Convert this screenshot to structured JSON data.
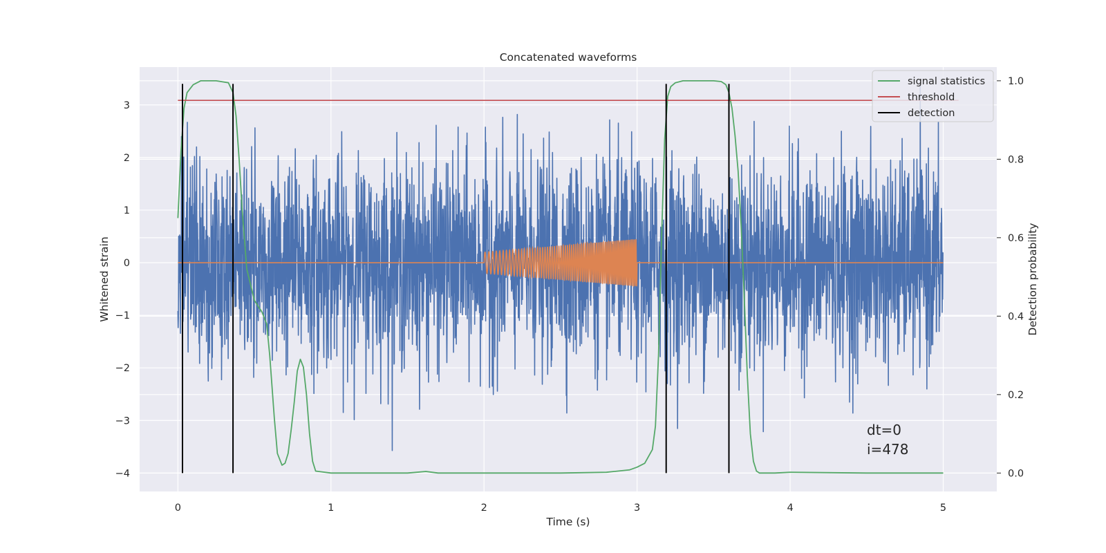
{
  "chart_data": {
    "type": "line",
    "title": "Concatenated waveforms",
    "xlabel": "Time (s)",
    "ylabel": "Whitened strain",
    "y2label": "Detection probability",
    "xlim": [
      -0.25,
      5.35
    ],
    "ylim": [
      -4.35,
      3.72
    ],
    "y2lim": [
      -0.047,
      1.035
    ],
    "xticks": [
      0,
      1,
      2,
      3,
      4,
      5
    ],
    "xtick_labels": [
      "0",
      "1",
      "2",
      "3",
      "4",
      "5"
    ],
    "yticks": [
      3,
      2,
      1,
      0,
      -1,
      -2,
      -3,
      -4
    ],
    "ytick_labels": [
      "3",
      "2",
      "1",
      "0",
      "−1",
      "−2",
      "−3",
      "−4"
    ],
    "y2ticks": [
      1.0,
      0.8,
      0.6,
      0.4,
      0.2,
      0.0
    ],
    "y2tick_labels": [
      "1.0",
      "0.8",
      "0.6",
      "0.4",
      "0.2",
      "0.0"
    ],
    "grid": true,
    "legend_position": "top-right",
    "legend": [
      {
        "label": "signal statistics",
        "color": "#55a868"
      },
      {
        "label": "threshold",
        "color": "#c44e52"
      },
      {
        "label": "detection",
        "color": "#000000"
      }
    ],
    "series": [
      {
        "kind": "noise",
        "axis": "left",
        "color": "#4c72b0",
        "x_range": [
          0,
          5
        ],
        "typical_amplitude": 1.0,
        "peak_range": [
          -4.0,
          3.4
        ]
      },
      {
        "kind": "chirp",
        "axis": "left",
        "color": "#dd8452",
        "x_range": [
          0,
          5
        ],
        "active_range": [
          2.0,
          3.0
        ],
        "amplitude_start": 0.2,
        "amplitude_end": 0.45
      },
      {
        "name": "signal statistics",
        "axis": "right",
        "color": "#55a868",
        "x": [
          0.0,
          0.02,
          0.04,
          0.06,
          0.1,
          0.15,
          0.25,
          0.33,
          0.36,
          0.38,
          0.4,
          0.42,
          0.45,
          0.5,
          0.55,
          0.58,
          0.6,
          0.63,
          0.65,
          0.68,
          0.7,
          0.72,
          0.74,
          0.76,
          0.78,
          0.8,
          0.82,
          0.84,
          0.86,
          0.88,
          0.9,
          1.0,
          1.5,
          1.62,
          1.7,
          2.0,
          2.5,
          2.8,
          2.95,
          3.0,
          3.05,
          3.1,
          3.12,
          3.14,
          3.16,
          3.18,
          3.2,
          3.22,
          3.25,
          3.3,
          3.4,
          3.5,
          3.55,
          3.58,
          3.6,
          3.62,
          3.64,
          3.66,
          3.68,
          3.7,
          3.72,
          3.74,
          3.76,
          3.78,
          3.8,
          3.9,
          4.0,
          4.5,
          5.0
        ],
        "values": [
          0.65,
          0.82,
          0.93,
          0.97,
          0.99,
          1.0,
          1.0,
          0.995,
          0.97,
          0.91,
          0.8,
          0.67,
          0.52,
          0.44,
          0.41,
          0.38,
          0.3,
          0.14,
          0.05,
          0.02,
          0.025,
          0.05,
          0.11,
          0.18,
          0.26,
          0.29,
          0.27,
          0.2,
          0.1,
          0.03,
          0.005,
          0.0,
          0.0,
          0.004,
          0.0,
          0.0,
          0.0,
          0.002,
          0.008,
          0.015,
          0.025,
          0.06,
          0.12,
          0.3,
          0.6,
          0.85,
          0.96,
          0.985,
          0.995,
          1.0,
          1.0,
          1.0,
          0.998,
          0.99,
          0.97,
          0.93,
          0.86,
          0.77,
          0.63,
          0.45,
          0.25,
          0.1,
          0.03,
          0.005,
          0.0,
          0.0,
          0.002,
          0.0,
          0.0
        ]
      },
      {
        "name": "threshold",
        "axis": "right",
        "color": "#c44e52",
        "x": [
          0,
          5.1
        ],
        "values": [
          0.95,
          0.95
        ]
      }
    ],
    "detections": {
      "color": "#000000",
      "x": [
        0.03,
        0.36,
        3.19,
        3.6
      ],
      "y_range": [
        -4.0,
        3.4
      ]
    },
    "annotations": [
      "dt=0",
      "i=478"
    ]
  }
}
